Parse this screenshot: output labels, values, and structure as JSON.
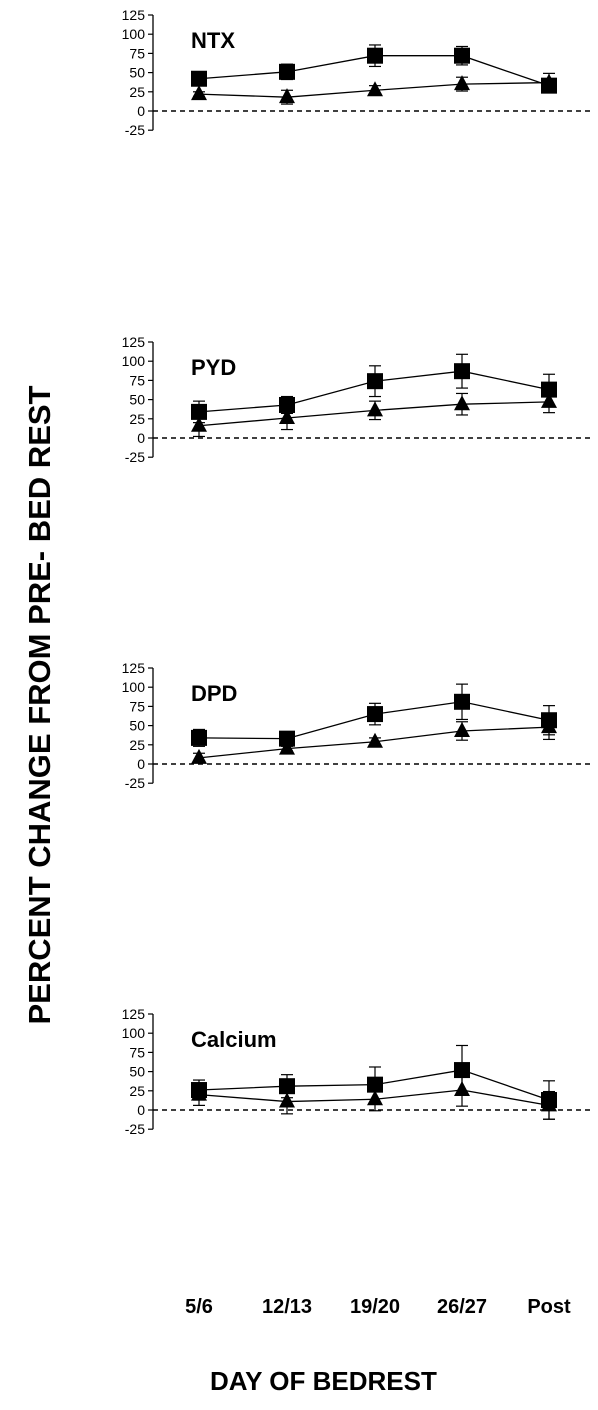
{
  "figure": {
    "ylabel": "PERCENT CHANGE FROM PRE- BED REST",
    "xlabel": "DAY OF BEDREST"
  },
  "chart_data": [
    {
      "type": "line",
      "title": "NTX",
      "categories": [
        "5/6",
        "12/13",
        "19/20",
        "26/27",
        "Post"
      ],
      "ylim": [
        -25,
        125
      ],
      "yticks": [
        -25,
        0,
        25,
        50,
        75,
        100,
        125
      ],
      "reference_line": 0,
      "series": [
        {
          "marker": "square",
          "values": [
            42,
            51,
            72,
            72,
            33
          ],
          "errors": [
            8,
            10,
            14,
            12,
            9
          ]
        },
        {
          "marker": "triangle",
          "values": [
            22,
            18,
            27,
            35,
            37
          ],
          "errors": [
            3,
            9,
            6,
            9,
            12
          ]
        }
      ]
    },
    {
      "type": "line",
      "title": "PYD",
      "categories": [
        "5/6",
        "12/13",
        "19/20",
        "26/27",
        "Post"
      ],
      "ylim": [
        -25,
        125
      ],
      "yticks": [
        -25,
        0,
        25,
        50,
        75,
        100,
        125
      ],
      "reference_line": 0,
      "series": [
        {
          "marker": "square",
          "values": [
            34,
            43,
            74,
            87,
            63
          ],
          "errors": [
            14,
            11,
            20,
            22,
            20
          ]
        },
        {
          "marker": "triangle",
          "values": [
            16,
            26,
            36,
            44,
            47
          ],
          "errors": [
            14,
            15,
            12,
            14,
            14
          ]
        }
      ]
    },
    {
      "type": "line",
      "title": "DPD",
      "categories": [
        "5/6",
        "12/13",
        "19/20",
        "26/27",
        "Post"
      ],
      "ylim": [
        -25,
        125
      ],
      "yticks": [
        -25,
        0,
        25,
        50,
        75,
        100,
        125
      ],
      "reference_line": 0,
      "series": [
        {
          "marker": "square",
          "values": [
            34,
            33,
            65,
            81,
            57
          ],
          "errors": [
            11,
            9,
            14,
            23,
            19
          ]
        },
        {
          "marker": "triangle",
          "values": [
            8,
            20,
            29,
            43,
            48
          ],
          "errors": [
            6,
            3,
            5,
            12,
            16
          ]
        }
      ]
    },
    {
      "type": "line",
      "title": "Calcium",
      "categories": [
        "5/6",
        "12/13",
        "19/20",
        "26/27",
        "Post"
      ],
      "ylim": [
        -25,
        125
      ],
      "yticks": [
        -25,
        0,
        25,
        50,
        75,
        100,
        125
      ],
      "reference_line": 0,
      "series": [
        {
          "marker": "square",
          "values": [
            26,
            31,
            33,
            52,
            13
          ],
          "errors": [
            13,
            15,
            23,
            32,
            25
          ]
        },
        {
          "marker": "triangle",
          "values": [
            20,
            11,
            14,
            26,
            6
          ],
          "errors": [
            14,
            16,
            15,
            21,
            18
          ]
        }
      ]
    }
  ]
}
